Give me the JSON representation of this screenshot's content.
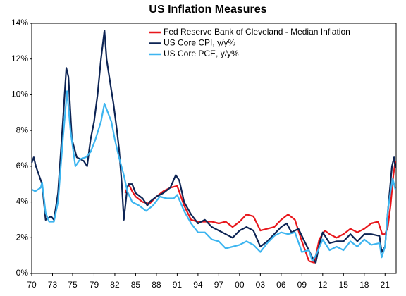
{
  "chart_data": {
    "type": "line",
    "title": "US Inflation Measures",
    "xlim": [
      1970,
      2022.6
    ],
    "ylim": [
      0,
      14
    ],
    "xticks": [
      {
        "value": 1970,
        "label": "70"
      },
      {
        "value": 1973,
        "label": "73"
      },
      {
        "value": 1975.9,
        "label": "75"
      },
      {
        "value": 1979,
        "label": "79"
      },
      {
        "value": 1982,
        "label": "82"
      },
      {
        "value": 1985,
        "label": "85"
      },
      {
        "value": 1988,
        "label": "88"
      },
      {
        "value": 1991,
        "label": "91"
      },
      {
        "value": 1994,
        "label": "94"
      },
      {
        "value": 1997,
        "label": "97"
      },
      {
        "value": 2000,
        "label": "00"
      },
      {
        "value": 2003,
        "label": "03"
      },
      {
        "value": 2006,
        "label": "06"
      },
      {
        "value": 2009,
        "label": "09"
      },
      {
        "value": 2012,
        "label": "12"
      },
      {
        "value": 2015,
        "label": "15"
      },
      {
        "value": 2018,
        "label": "18"
      },
      {
        "value": 2021,
        "label": "21"
      }
    ],
    "yticks": [
      {
        "value": 0,
        "label": "0%"
      },
      {
        "value": 2,
        "label": "2%"
      },
      {
        "value": 4,
        "label": "4%"
      },
      {
        "value": 6,
        "label": "6%"
      },
      {
        "value": 8,
        "label": "8%"
      },
      {
        "value": 10,
        "label": "10%"
      },
      {
        "value": 12,
        "label": "12%"
      },
      {
        "value": 14,
        "label": "14%"
      }
    ],
    "legend": "upper right",
    "series": [
      {
        "name": "Fed Reserve Bank of Cleveland - Median Inflation",
        "color": "#e8161b",
        "x": [
          1983.5,
          1984,
          1984.5,
          1985,
          1986,
          1987,
          1988,
          1989,
          1990,
          1991,
          1992,
          1993,
          1994,
          1995,
          1996,
          1997,
          1998,
          1999,
          2000,
          2001,
          2002,
          2003,
          2004,
          2005,
          2006,
          2007,
          2008,
          2009,
          2010,
          2010.8,
          2011.5,
          2012.3,
          2013,
          2014,
          2015,
          2016,
          2017,
          2018,
          2019,
          2020,
          2020.6,
          2021,
          2021.4,
          2021.8,
          2022.2,
          2022.5
        ],
        "values": [
          4.5,
          5.0,
          4.6,
          4.3,
          4.0,
          3.9,
          4.3,
          4.6,
          4.8,
          4.9,
          3.8,
          3.0,
          2.9,
          2.9,
          2.9,
          2.8,
          2.9,
          2.6,
          2.9,
          3.3,
          3.2,
          2.4,
          2.5,
          2.6,
          3.0,
          3.3,
          3.0,
          1.8,
          0.7,
          0.6,
          1.9,
          2.4,
          2.2,
          2.0,
          2.2,
          2.5,
          2.3,
          2.5,
          2.8,
          2.9,
          2.2,
          2.2,
          2.6,
          3.8,
          5.5,
          6.3
        ]
      },
      {
        "name": "US Core CPI, y/y%",
        "color": "#0d2454",
        "x": [
          1970,
          1970.3,
          1970.6,
          1971.5,
          1972,
          1972.8,
          1973.2,
          1973.8,
          1974.5,
          1975,
          1975.3,
          1975.8,
          1976.5,
          1977,
          1977.5,
          1978,
          1978.5,
          1979,
          1979.5,
          1980,
          1980.5,
          1980.8,
          1981,
          1981.4,
          1981.8,
          1982.3,
          1982.6,
          1983,
          1983.3,
          1983.8,
          1984,
          1984.5,
          1985,
          1986,
          1986.7,
          1987,
          1988,
          1989,
          1990,
          1990.8,
          1991.3,
          1992,
          1993,
          1994,
          1995,
          1996,
          1997,
          1998,
          1999,
          2000,
          2001,
          2002,
          2003,
          2004,
          2005,
          2006,
          2006.8,
          2007.5,
          2008.5,
          2009.5,
          2010.5,
          2011,
          2011.5,
          2012,
          2013,
          2014,
          2015,
          2016,
          2017,
          2018,
          2019,
          2020.2,
          2020.5,
          2021,
          2021.3,
          2021.6,
          2022,
          2022.3,
          2022.5
        ],
        "values": [
          6.2,
          6.5,
          6.0,
          5.0,
          3.0,
          3.2,
          3.0,
          4.5,
          8.5,
          11.5,
          11.0,
          7.5,
          6.5,
          6.4,
          6.3,
          6.0,
          7.5,
          8.5,
          10.0,
          12.0,
          13.6,
          12.0,
          11.5,
          10.5,
          9.5,
          8.0,
          7.0,
          5.0,
          3.0,
          4.8,
          5.0,
          5.0,
          4.5,
          4.2,
          3.8,
          4.0,
          4.3,
          4.5,
          4.8,
          5.5,
          5.2,
          4.0,
          3.3,
          2.8,
          3.0,
          2.6,
          2.4,
          2.2,
          2.0,
          2.4,
          2.6,
          2.4,
          1.5,
          1.8,
          2.2,
          2.6,
          2.8,
          2.3,
          2.5,
          1.7,
          0.9,
          0.6,
          1.6,
          2.3,
          1.7,
          1.8,
          1.8,
          2.2,
          1.8,
          2.2,
          2.2,
          2.1,
          1.2,
          1.5,
          3.0,
          4.3,
          6.0,
          6.5,
          5.9
        ]
      },
      {
        "name": "US Core PCE, y/y%",
        "color": "#3db5f0",
        "x": [
          1970,
          1970.5,
          1971.3,
          1971.5,
          1972,
          1972.5,
          1973.2,
          1973.8,
          1974.5,
          1975.1,
          1975.6,
          1976.3,
          1977,
          1977.8,
          1978.5,
          1979.2,
          1980,
          1980.5,
          1981,
          1981.5,
          1982,
          1982.6,
          1983.3,
          1983.8,
          1984.5,
          1985.5,
          1986.5,
          1987.5,
          1988.5,
          1989.5,
          1990.5,
          1991,
          1992,
          1993,
          1994,
          1995,
          1996,
          1997,
          1998,
          1999,
          2000,
          2001,
          2002,
          2003,
          2004,
          2005,
          2006,
          2007,
          2008,
          2009,
          2010,
          2010.5,
          2011,
          2012,
          2013,
          2014,
          2015,
          2016,
          2017,
          2018,
          2019,
          2020.2,
          2020.5,
          2021,
          2021.4,
          2021.8,
          2022.1,
          2022.5
        ],
        "values": [
          4.7,
          4.6,
          4.8,
          5.1,
          3.4,
          2.9,
          2.9,
          4.0,
          7.5,
          10.2,
          8.0,
          6.0,
          6.4,
          6.5,
          6.8,
          7.5,
          8.5,
          9.5,
          9.0,
          8.5,
          7.5,
          6.5,
          5.5,
          4.6,
          4.0,
          3.8,
          3.5,
          3.8,
          4.3,
          4.2,
          4.2,
          4.4,
          3.5,
          2.8,
          2.3,
          2.3,
          1.9,
          1.8,
          1.4,
          1.5,
          1.6,
          1.8,
          1.6,
          1.2,
          1.7,
          2.1,
          2.3,
          2.2,
          2.3,
          1.2,
          1.3,
          0.7,
          1.0,
          1.9,
          1.3,
          1.5,
          1.3,
          1.8,
          1.5,
          1.9,
          1.6,
          1.7,
          0.9,
          1.5,
          3.5,
          4.6,
          5.3,
          4.7
        ]
      }
    ]
  }
}
